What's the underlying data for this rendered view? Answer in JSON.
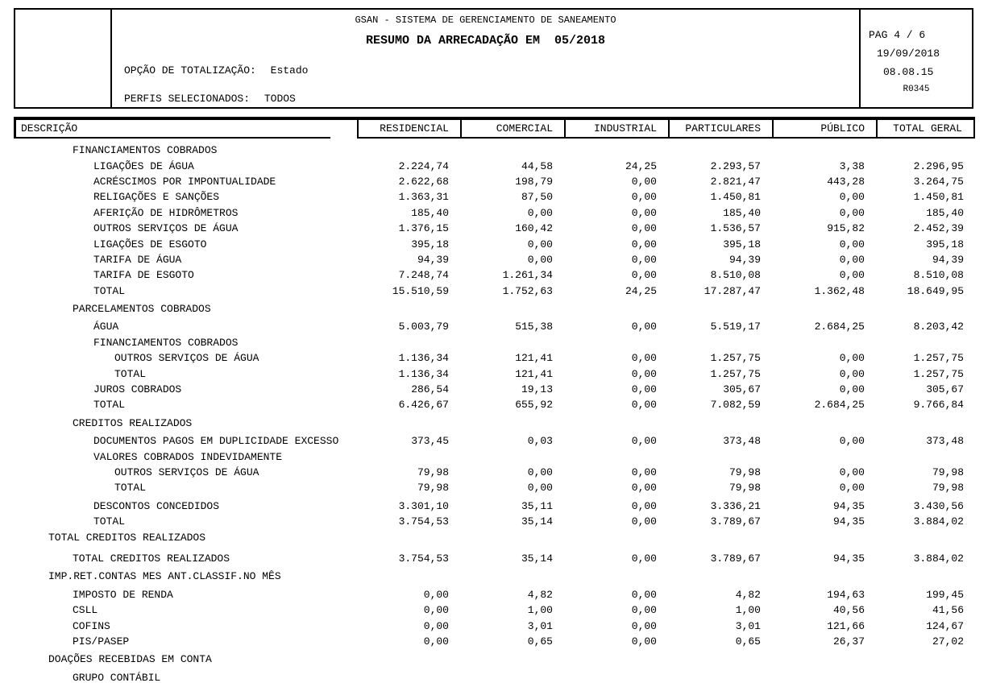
{
  "header": {
    "system_title": "GSAN - SISTEMA DE GERENCIAMENTO DE SANEAMENTO",
    "report_title": "RESUMO DA ARRECADAÇÃO EM  05/2018",
    "totalization_label": "OPÇÃO DE TOTALIZAÇÃO:",
    "totalization_value": "Estado",
    "profiles_label": "PERFIS SELECIONADOS:",
    "profiles_value": "TODOS",
    "page_info": {
      "page": "PAG 4 / 6",
      "date": "19/09/2018",
      "time": "08.08.15",
      "code": "R0345"
    }
  },
  "table": {
    "description_header": "DESCRIÇÃO",
    "columns": [
      "RESIDENCIAL",
      "COMERCIAL",
      "INDUSTRIAL",
      "PARTICULARES",
      "PÚBLICO",
      "TOTAL GERAL"
    ],
    "rows": [
      {
        "label": "FINANCIAMENTOS COBRADOS",
        "indent": 1,
        "values": null
      },
      {
        "label": "LIGAÇÕES DE ÁGUA",
        "indent": 2,
        "values": [
          "2.224,74",
          "44,58",
          "24,25",
          "2.293,57",
          "3,38",
          "2.296,95"
        ]
      },
      {
        "label": "ACRÉSCIMOS POR IMPONTUALIDADE",
        "indent": 2,
        "values": [
          "2.622,68",
          "198,79",
          "0,00",
          "2.821,47",
          "443,28",
          "3.264,75"
        ]
      },
      {
        "label": "RELIGAÇÕES E SANÇÕES",
        "indent": 2,
        "values": [
          "1.363,31",
          "87,50",
          "0,00",
          "1.450,81",
          "0,00",
          "1.450,81"
        ]
      },
      {
        "label": "AFERIÇÃO DE HIDRÔMETROS",
        "indent": 2,
        "values": [
          "185,40",
          "0,00",
          "0,00",
          "185,40",
          "0,00",
          "185,40"
        ]
      },
      {
        "label": "OUTROS SERVIÇOS DE ÁGUA",
        "indent": 2,
        "values": [
          "1.376,15",
          "160,42",
          "0,00",
          "1.536,57",
          "915,82",
          "2.452,39"
        ]
      },
      {
        "label": "LIGAÇÕES DE ESGOTO",
        "indent": 2,
        "values": [
          "395,18",
          "0,00",
          "0,00",
          "395,18",
          "0,00",
          "395,18"
        ]
      },
      {
        "label": "TARIFA DE ÁGUA",
        "indent": 2,
        "values": [
          "94,39",
          "0,00",
          "0,00",
          "94,39",
          "0,00",
          "94,39"
        ]
      },
      {
        "label": "TARIFA DE ESGOTO",
        "indent": 2,
        "values": [
          "7.248,74",
          "1.261,34",
          "0,00",
          "8.510,08",
          "0,00",
          "8.510,08"
        ]
      },
      {
        "label": "TOTAL",
        "indent": 2,
        "values": [
          "15.510,59",
          "1.752,63",
          "24,25",
          "17.287,47",
          "1.362,48",
          "18.649,95"
        ]
      },
      {
        "label": "PARCELAMENTOS COBRADOS",
        "indent": 1,
        "gap": 1,
        "values": null
      },
      {
        "label": "ÁGUA",
        "indent": 2,
        "gap": 1,
        "values": [
          "5.003,79",
          "515,38",
          "0,00",
          "5.519,17",
          "2.684,25",
          "8.203,42"
        ]
      },
      {
        "label": "FINANCIAMENTOS COBRADOS",
        "indent": 2,
        "values": null
      },
      {
        "label": "OUTROS SERVIÇOS DE ÁGUA",
        "indent": 3,
        "values": [
          "1.136,34",
          "121,41",
          "0,00",
          "1.257,75",
          "0,00",
          "1.257,75"
        ]
      },
      {
        "label": "TOTAL",
        "indent": 3,
        "values": [
          "1.136,34",
          "121,41",
          "0,00",
          "1.257,75",
          "0,00",
          "1.257,75"
        ]
      },
      {
        "label": "JUROS COBRADOS",
        "indent": 2,
        "values": [
          "286,54",
          "19,13",
          "0,00",
          "305,67",
          "0,00",
          "305,67"
        ]
      },
      {
        "label": "TOTAL",
        "indent": 2,
        "values": [
          "6.426,67",
          "655,92",
          "0,00",
          "7.082,59",
          "2.684,25",
          "9.766,84"
        ]
      },
      {
        "label": "CREDITOS REALIZADOS",
        "indent": 1,
        "gap": 1,
        "values": null
      },
      {
        "label": "DOCUMENTOS PAGOS EM DUPLICIDADE EXCESSO",
        "indent": 2,
        "gap": 1,
        "values": [
          "373,45",
          "0,03",
          "0,00",
          "373,48",
          "0,00",
          "373,48"
        ]
      },
      {
        "label": "VALORES COBRADOS INDEVIDAMENTE",
        "indent": 2,
        "values": null
      },
      {
        "label": "OUTROS SERVIÇOS DE ÁGUA",
        "indent": 3,
        "values": [
          "79,98",
          "0,00",
          "0,00",
          "79,98",
          "0,00",
          "79,98"
        ]
      },
      {
        "label": "TOTAL",
        "indent": 3,
        "values": [
          "79,98",
          "0,00",
          "0,00",
          "79,98",
          "0,00",
          "79,98"
        ]
      },
      {
        "label": "DESCONTOS CONCEDIDOS",
        "indent": 2,
        "gap": 1,
        "values": [
          "3.301,10",
          "35,11",
          "0,00",
          "3.336,21",
          "94,35",
          "3.430,56"
        ]
      },
      {
        "label": "TOTAL",
        "indent": 2,
        "values": [
          "3.754,53",
          "35,14",
          "0,00",
          "3.789,67",
          "94,35",
          "3.884,02"
        ]
      },
      {
        "label": "TOTAL CREDITOS REALIZADOS",
        "indent": 0,
        "values": null
      },
      {
        "label": "TOTAL CREDITOS REALIZADOS",
        "indent": 1,
        "gap": 2,
        "values": [
          "3.754,53",
          "35,14",
          "0,00",
          "3.789,67",
          "94,35",
          "3.884,02"
        ]
      },
      {
        "label": "IMP.RET.CONTAS MES ANT.CLASSIF.NO MÊS",
        "indent": 0,
        "gap": 1,
        "values": null
      },
      {
        "label": "IMPOSTO DE RENDA",
        "indent": 1,
        "gap": 1,
        "values": [
          "0,00",
          "4,82",
          "0,00",
          "4,82",
          "194,63",
          "199,45"
        ]
      },
      {
        "label": "CSLL",
        "indent": 1,
        "values": [
          "0,00",
          "1,00",
          "0,00",
          "1,00",
          "40,56",
          "41,56"
        ]
      },
      {
        "label": "COFINS",
        "indent": 1,
        "values": [
          "0,00",
          "3,01",
          "0,00",
          "3,01",
          "121,66",
          "124,67"
        ]
      },
      {
        "label": "PIS/PASEP",
        "indent": 1,
        "values": [
          "0,00",
          "0,65",
          "0,00",
          "0,65",
          "26,37",
          "27,02"
        ]
      },
      {
        "label": "DOAÇÕES RECEBIDAS EM CONTA",
        "indent": 0,
        "gap": 1,
        "values": null
      },
      {
        "label": "GRUPO CONTÁBIL",
        "indent": 1,
        "gap": 1,
        "values": null
      }
    ]
  }
}
